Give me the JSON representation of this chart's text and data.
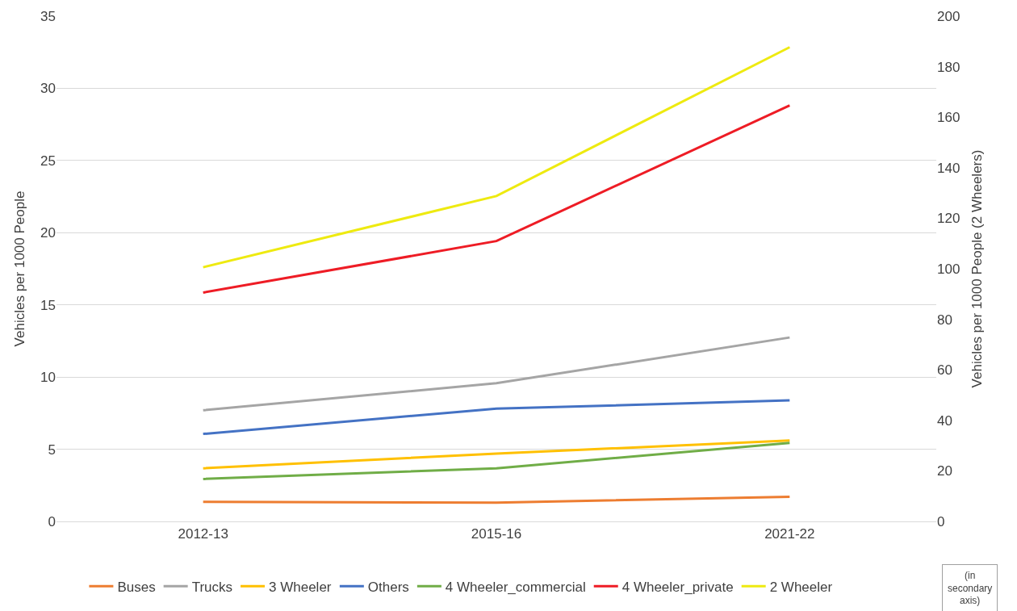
{
  "chart_data": {
    "type": "line",
    "ylabel": "Vehicles per 1000 People",
    "y2label": "Vehicles per 1000 People (2 Wheelers)",
    "categories": [
      "2012-13",
      "2015-16",
      "2021-22"
    ],
    "series": [
      {
        "name": "Buses",
        "color": "#ed7d31",
        "values": [
          1.36,
          1.3,
          1.7
        ]
      },
      {
        "name": "Trucks",
        "color": "#a5a5a5",
        "values": [
          7.7,
          9.57,
          12.74
        ]
      },
      {
        "name": "3 Wheeler",
        "color": "#ffc000",
        "values": [
          3.68,
          4.7,
          5.6
        ]
      },
      {
        "name": "Others",
        "color": "#4472c4",
        "values": [
          6.06,
          7.81,
          8.38
        ]
      },
      {
        "name": "4 Wheeler_commercial",
        "color": "#70ad47",
        "values": [
          2.94,
          3.68,
          5.44
        ]
      },
      {
        "name": "4 Wheeler_private",
        "color": "#ee1c25",
        "values": [
          15.85,
          19.42,
          28.82
        ]
      },
      {
        "name": "2 Wheeler",
        "color": "#eeea10",
        "values": [
          100.6,
          128.8,
          187.7
        ],
        "axis": "y2"
      }
    ],
    "ylim": [
      0,
      35
    ],
    "yticks": [
      0,
      5,
      10,
      15,
      20,
      25,
      30,
      35
    ],
    "y2lim": [
      0,
      200
    ],
    "y2ticks": [
      0,
      20,
      40,
      60,
      80,
      100,
      120,
      140,
      160,
      180,
      200
    ],
    "grid": "y",
    "legend": "bottom",
    "marker": "none",
    "line_style": "solid",
    "annotations": [
      "(in secondary axis)"
    ]
  }
}
